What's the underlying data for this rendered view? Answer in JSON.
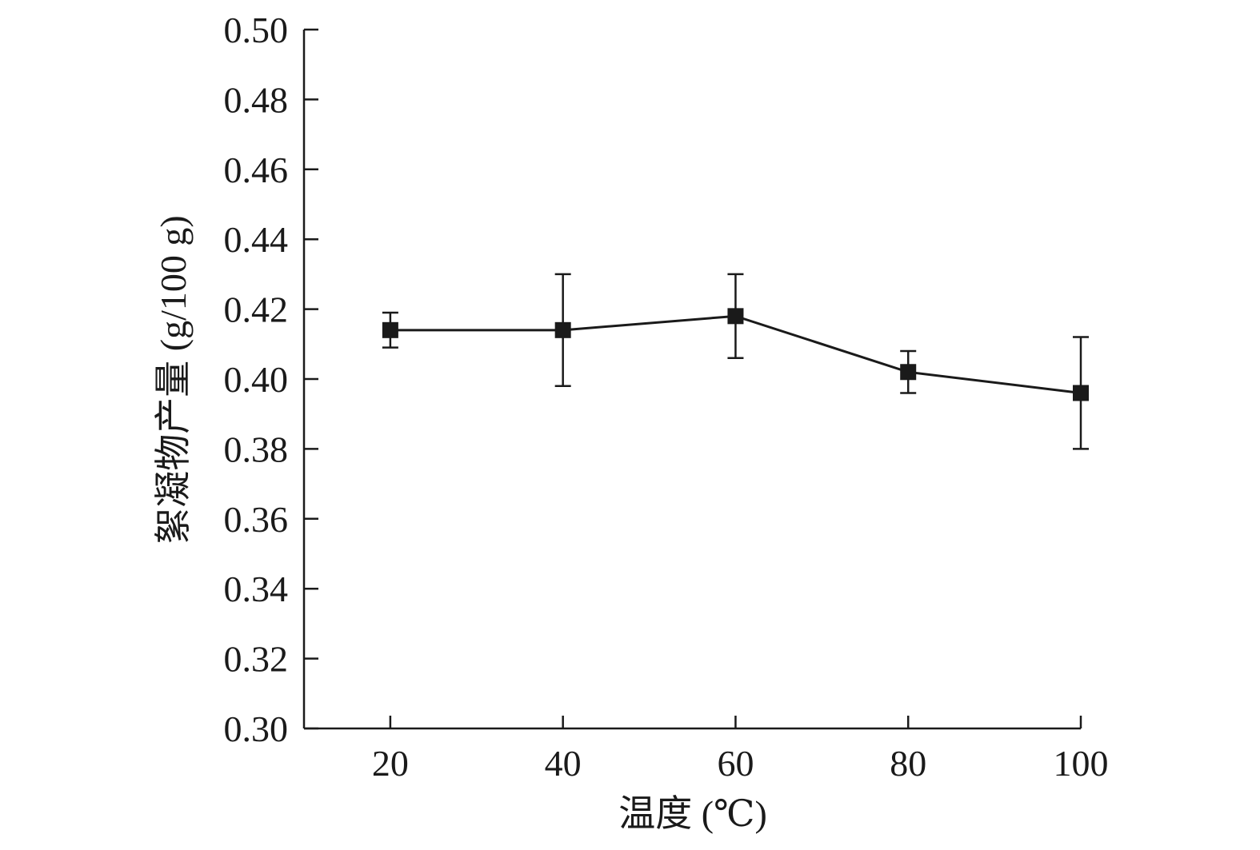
{
  "chart_data": {
    "type": "line",
    "title": "",
    "xlabel": "温度 (℃)",
    "ylabel": "絮凝物产量 (g/100 g)",
    "xlim": [
      10,
      100
    ],
    "ylim": [
      0.3,
      0.5
    ],
    "xticks": [
      20,
      40,
      60,
      80,
      100
    ],
    "xtick_labels": [
      "20",
      "40",
      "60",
      "80",
      "100"
    ],
    "yticks": [
      0.3,
      0.32,
      0.34,
      0.36,
      0.38,
      0.4,
      0.42,
      0.44,
      0.46,
      0.48,
      0.5
    ],
    "ytick_labels": [
      "0.30",
      "0.32",
      "0.34",
      "0.36",
      "0.38",
      "0.40",
      "0.42",
      "0.44",
      "0.46",
      "0.48",
      "0.50"
    ],
    "grid": false,
    "series": [
      {
        "name": "絮凝物产量",
        "marker": "square",
        "color": "#1a1a1a",
        "x": [
          20,
          40,
          60,
          80,
          100
        ],
        "y": [
          0.414,
          0.414,
          0.418,
          0.402,
          0.396
        ],
        "error": [
          0.005,
          0.016,
          0.012,
          0.006,
          0.016
        ]
      }
    ]
  }
}
